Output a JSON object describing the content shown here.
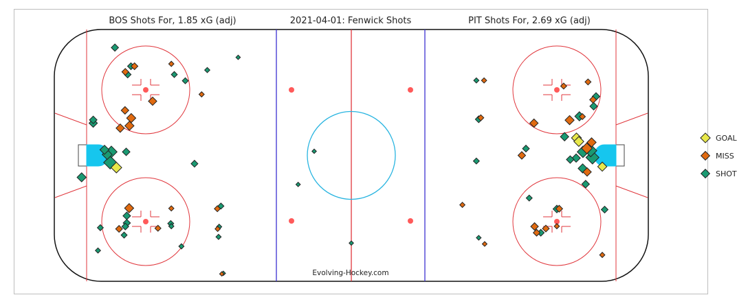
{
  "titles": {
    "left": "BOS Shots For, 1.85 xG (adj)",
    "center": "2021-04-01:  Fenwick Shots",
    "right": "PIT Shots For, 2.69 xG (adj)"
  },
  "credit": "Evolving-Hockey.com",
  "colors": {
    "GOAL": "#e8e84a",
    "MISS": "#e06a10",
    "SHOT": "#1a9a72",
    "outline": "#222222",
    "red_line": "#e0353b",
    "blue_line": "#3b2fd1",
    "crease": "#16c6ee",
    "center_circle": "#27b4e0",
    "dot": "#ff5a5a"
  },
  "legend": [
    {
      "label": "GOAL",
      "key": "GOAL"
    },
    {
      "label": "MISS",
      "key": "MISS"
    },
    {
      "label": "SHOT",
      "key": "SHOT"
    }
  ],
  "chart_data": {
    "type": "scatter",
    "x_unit": "ft",
    "y_unit": "ft",
    "xlim": [
      -100,
      100
    ],
    "ylim": [
      -42.5,
      42.5
    ],
    "size_encodes": "expected goals",
    "series": [
      {
        "name": "BOS",
        "points": [
          {
            "x": -90.8,
            "y": -7.4,
            "r": 4.0,
            "t": "SHOT"
          },
          {
            "x": -81.2,
            "y": -2.4,
            "r": 6.5,
            "t": "SHOT"
          },
          {
            "x": -82.2,
            "y": 0.3,
            "r": 4.5,
            "t": "SHOT"
          },
          {
            "x": -83.1,
            "y": 1.9,
            "r": 4.0,
            "t": "SHOT"
          },
          {
            "x": -80.8,
            "y": 1.2,
            "r": 5.5,
            "t": "SHOT"
          },
          {
            "x": -79.1,
            "y": -4.1,
            "r": 5.0,
            "t": "GOAL"
          },
          {
            "x": -75.8,
            "y": 1.2,
            "r": 3.0,
            "t": "SHOT"
          },
          {
            "x": -86.9,
            "y": 10.9,
            "r": 3.5,
            "t": "SHOT"
          },
          {
            "x": -86.9,
            "y": 12.0,
            "r": 3.0,
            "t": "SHOT"
          },
          {
            "x": -77.8,
            "y": 9.2,
            "r": 3.5,
            "t": "MISS"
          },
          {
            "x": -74.7,
            "y": 10.0,
            "r": 4.0,
            "t": "MISS"
          },
          {
            "x": -74.1,
            "y": 12.6,
            "r": 4.0,
            "t": "MISS"
          },
          {
            "x": -76.2,
            "y": 15.2,
            "r": 3.0,
            "t": "MISS"
          },
          {
            "x": -66.9,
            "y": 18.3,
            "r": 3.5,
            "t": "MISS"
          },
          {
            "x": -79.6,
            "y": 36.4,
            "r": 2.8,
            "t": "SHOT"
          },
          {
            "x": -76.1,
            "y": 28.2,
            "r": 2.5,
            "t": "MISS"
          },
          {
            "x": -75.3,
            "y": 27.3,
            "r": 2.5,
            "t": "SHOT"
          },
          {
            "x": -74.2,
            "y": 30.1,
            "r": 2.5,
            "t": "SHOT"
          },
          {
            "x": -73.0,
            "y": 30.1,
            "r": 2.5,
            "t": "MISS"
          },
          {
            "x": -59.6,
            "y": 27.3,
            "r": 2.0,
            "t": "SHOT"
          },
          {
            "x": -60.6,
            "y": 30.9,
            "r": 1.5,
            "t": "MISS"
          },
          {
            "x": -55.9,
            "y": 25.2,
            "r": 2.0,
            "t": "SHOT"
          },
          {
            "x": -50.4,
            "y": 20.6,
            "r": 1.5,
            "t": "MISS"
          },
          {
            "x": -48.5,
            "y": 28.8,
            "r": 1.5,
            "t": "SHOT"
          },
          {
            "x": -38.1,
            "y": 33.1,
            "r": 1.0,
            "t": "SHOT"
          },
          {
            "x": -52.8,
            "y": -2.8,
            "r": 2.5,
            "t": "SHOT"
          },
          {
            "x": -74.8,
            "y": -17.8,
            "r": 4.0,
            "t": "MISS"
          },
          {
            "x": -75.6,
            "y": -20.4,
            "r": 3.0,
            "t": "SHOT"
          },
          {
            "x": -75.6,
            "y": -22.8,
            "r": 2.8,
            "t": "SHOT"
          },
          {
            "x": -76.1,
            "y": -24.0,
            "r": 2.5,
            "t": "SHOT"
          },
          {
            "x": -78.2,
            "y": -24.8,
            "r": 2.5,
            "t": "MISS"
          },
          {
            "x": -84.5,
            "y": -24.4,
            "r": 2.0,
            "t": "SHOT"
          },
          {
            "x": -76.5,
            "y": -26.9,
            "r": 2.0,
            "t": "SHOT"
          },
          {
            "x": -65.1,
            "y": -24.6,
            "r": 2.0,
            "t": "MISS"
          },
          {
            "x": -85.3,
            "y": -32.1,
            "r": 1.5,
            "t": "SHOT"
          },
          {
            "x": -60.6,
            "y": -17.9,
            "r": 1.5,
            "t": "MISS"
          },
          {
            "x": -60.8,
            "y": -23.0,
            "r": 2.0,
            "t": "SHOT"
          },
          {
            "x": -60.6,
            "y": -23.9,
            "r": 1.5,
            "t": "SHOT"
          },
          {
            "x": -57.2,
            "y": -30.7,
            "r": 1.5,
            "t": "SHOT"
          },
          {
            "x": -45.1,
            "y": -18.0,
            "r": 2.0,
            "t": "MISS"
          },
          {
            "x": -43.9,
            "y": -17.1,
            "r": 2.0,
            "t": "SHOT"
          },
          {
            "x": -45.0,
            "y": -24.8,
            "r": 1.5,
            "t": "MISS"
          },
          {
            "x": -44.5,
            "y": -24.1,
            "r": 1.5,
            "t": "SHOT"
          },
          {
            "x": -44.7,
            "y": -27.5,
            "r": 1.5,
            "t": "SHOT"
          },
          {
            "x": -43.6,
            "y": -40.0,
            "r": 1.0,
            "t": "MISS"
          },
          {
            "x": -43.1,
            "y": -39.8,
            "r": 1.0,
            "t": "SHOT"
          },
          {
            "x": -12.5,
            "y": 1.4,
            "r": 1.0,
            "t": "SHOT"
          },
          {
            "x": -17.9,
            "y": -9.8,
            "r": 1.0,
            "t": "SHOT"
          },
          {
            "x": 0.0,
            "y": -29.6,
            "r": 1.0,
            "t": "SHOT"
          }
        ]
      },
      {
        "name": "PIT",
        "points": [
          {
            "x": 81.2,
            "y": -0.7,
            "r": 6.5,
            "t": "SHOT"
          },
          {
            "x": 80.6,
            "y": 1.6,
            "r": 6.0,
            "t": "SHOT"
          },
          {
            "x": 78.0,
            "y": 1.2,
            "r": 5.5,
            "t": "SHOT"
          },
          {
            "x": 79.3,
            "y": 2.4,
            "r": 5.0,
            "t": "MISS"
          },
          {
            "x": 75.8,
            "y": 5.9,
            "r": 4.5,
            "t": "GOAL"
          },
          {
            "x": 76.6,
            "y": 4.7,
            "r": 4.5,
            "t": "GOAL"
          },
          {
            "x": 80.9,
            "y": 4.4,
            "r": 4.0,
            "t": "MISS"
          },
          {
            "x": 84.5,
            "y": -3.8,
            "r": 4.0,
            "t": "GOAL"
          },
          {
            "x": 77.9,
            "y": -4.4,
            "r": 4.0,
            "t": "SHOT"
          },
          {
            "x": 79.4,
            "y": -5.6,
            "r": 3.5,
            "t": "MISS"
          },
          {
            "x": 73.7,
            "y": -1.4,
            "r": 3.0,
            "t": "SHOT"
          },
          {
            "x": 75.7,
            "y": -0.9,
            "r": 3.5,
            "t": "SHOT"
          },
          {
            "x": 76.8,
            "y": 13.2,
            "r": 4.0,
            "t": "SHOT"
          },
          {
            "x": 73.5,
            "y": 11.9,
            "r": 4.0,
            "t": "MISS"
          },
          {
            "x": 71.8,
            "y": 6.3,
            "r": 3.5,
            "t": "SHOT"
          },
          {
            "x": 61.5,
            "y": 10.9,
            "r": 3.5,
            "t": "MISS"
          },
          {
            "x": 57.4,
            "y": 0.0,
            "r": 3.0,
            "t": "MISS"
          },
          {
            "x": 58.8,
            "y": 2.3,
            "r": 2.5,
            "t": "SHOT"
          },
          {
            "x": 71.5,
            "y": 23.4,
            "r": 2.0,
            "t": "MISS"
          },
          {
            "x": 79.7,
            "y": 24.8,
            "r": 2.0,
            "t": "MISS"
          },
          {
            "x": 81.6,
            "y": 16.6,
            "r": 3.0,
            "t": "SHOT"
          },
          {
            "x": 82.4,
            "y": 19.9,
            "r": 3.0,
            "t": "SHOT"
          },
          {
            "x": 81.4,
            "y": 18.8,
            "r": 2.5,
            "t": "MISS"
          },
          {
            "x": 77.8,
            "y": 13.1,
            "r": 2.0,
            "t": "MISS"
          },
          {
            "x": 42.1,
            "y": 25.3,
            "r": 1.5,
            "t": "SHOT"
          },
          {
            "x": 44.7,
            "y": 25.3,
            "r": 1.5,
            "t": "MISS"
          },
          {
            "x": 42.9,
            "y": 12.2,
            "r": 2.5,
            "t": "SHOT"
          },
          {
            "x": 43.6,
            "y": 12.7,
            "r": 2.0,
            "t": "MISS"
          },
          {
            "x": 42.1,
            "y": -1.9,
            "r": 2.0,
            "t": "SHOT"
          },
          {
            "x": 59.9,
            "y": -14.4,
            "r": 2.0,
            "t": "SHOT"
          },
          {
            "x": 37.4,
            "y": -16.7,
            "r": 1.5,
            "t": "MISS"
          },
          {
            "x": 70.0,
            "y": -18.0,
            "r": 2.5,
            "t": "MISS"
          },
          {
            "x": 69.2,
            "y": -18.1,
            "r": 3.0,
            "t": "SHOT"
          },
          {
            "x": 78.9,
            "y": -9.7,
            "r": 3.0,
            "t": "SHOT"
          },
          {
            "x": 85.3,
            "y": -18.3,
            "r": 2.5,
            "t": "SHOT"
          },
          {
            "x": 61.7,
            "y": -24.0,
            "r": 3.0,
            "t": "MISS"
          },
          {
            "x": 62.4,
            "y": -26.1,
            "r": 2.5,
            "t": "MISS"
          },
          {
            "x": 65.5,
            "y": -24.7,
            "r": 2.5,
            "t": "MISS"
          },
          {
            "x": 63.8,
            "y": -26.1,
            "r": 2.5,
            "t": "SHOT"
          },
          {
            "x": 69.2,
            "y": -23.9,
            "r": 1.5,
            "t": "MISS"
          },
          {
            "x": 42.9,
            "y": -27.8,
            "r": 1.2,
            "t": "SHOT"
          },
          {
            "x": 44.9,
            "y": -29.9,
            "r": 1.2,
            "t": "MISS"
          },
          {
            "x": 84.5,
            "y": -33.6,
            "r": 1.5,
            "t": "MISS"
          }
        ]
      }
    ]
  }
}
